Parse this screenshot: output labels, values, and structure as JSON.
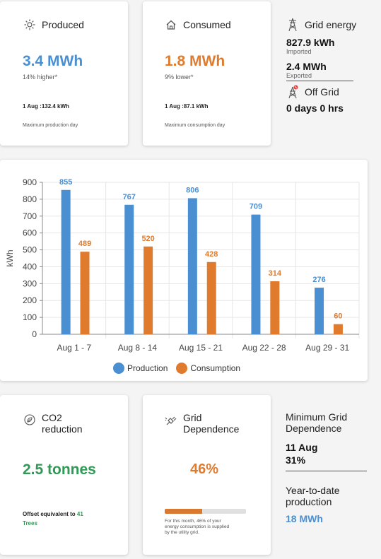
{
  "produced": {
    "title": "Produced",
    "value": "3.4 MWh",
    "delta": "14% higher*",
    "max_day": "1 Aug :132.4 kWh",
    "max_day_label": "Maximum production day"
  },
  "consumed": {
    "title": "Consumed",
    "value": "1.8 MWh",
    "delta": "9% lower*",
    "max_day": "1 Aug :87.1 kWh",
    "max_day_label": "Maximum consumption day"
  },
  "grid": {
    "title": "Grid energy",
    "imported_value": "827.9 kWh",
    "imported_label": "Imported",
    "exported_value": "2.4 MWh",
    "exported_label": "Exported",
    "offgrid_title": "Off Grid",
    "offgrid_value": "0 days 0 hrs"
  },
  "chart_data": {
    "type": "bar",
    "categories": [
      "Aug 1 - 7",
      "Aug 8 - 14",
      "Aug 15 - 21",
      "Aug 22 - 28",
      "Aug 29 - 31"
    ],
    "series": [
      {
        "name": "Production",
        "values": [
          855,
          767,
          806,
          709,
          276
        ],
        "color": "#4a8fd1"
      },
      {
        "name": "Consumption",
        "values": [
          489,
          520,
          428,
          314,
          60
        ],
        "color": "#e07b2e"
      }
    ],
    "ylabel": "kWh",
    "ylim": [
      0,
      900
    ],
    "yticks": [
      0,
      100,
      200,
      300,
      400,
      500,
      600,
      700,
      800,
      900
    ],
    "legend": "bottom"
  },
  "co2": {
    "title_line1": "CO2",
    "title_line2": "reduction",
    "value": "2.5 tonnes",
    "offset_text": "Offset equivalent to",
    "offset_count": "41",
    "offset_unit": "Trees"
  },
  "dependence": {
    "title_line1": "Grid",
    "title_line2": "Dependence",
    "value": "46%",
    "progress": 0.46,
    "note": "For this month, 46% of your energy consumption is supplied by the utility grid."
  },
  "min_grid": {
    "title": "Minimum Grid Dependence",
    "date": "11 Aug",
    "value": "31%"
  },
  "ytd": {
    "title": "Year-to-date production",
    "value": "18 MWh"
  }
}
